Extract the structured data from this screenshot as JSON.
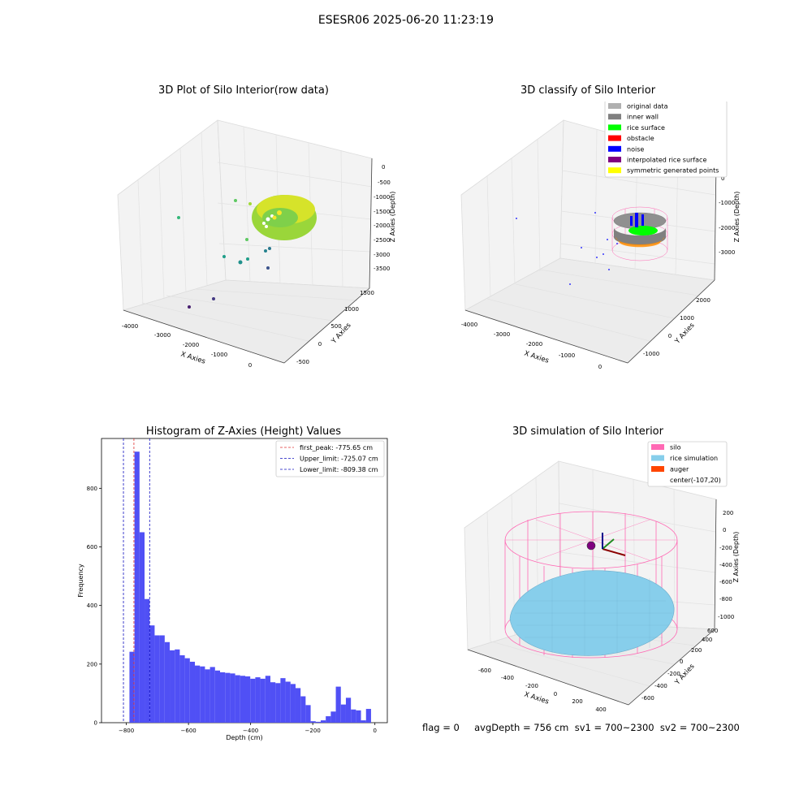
{
  "suptitle": "ESESR06 2025-06-20 11:23:19",
  "footer": "flag = 0     avgDepth = 756 cm  sv1 = 700~2300  sv2 = 700~2300",
  "colors": {
    "histogram": "#5050f5",
    "first_peak_line": "#e03030",
    "limit_lines": "#1010c0"
  },
  "chart_data": [
    {
      "type": "scatter",
      "title": "3D Plot of Silo Interior(row data)",
      "xlabel": "X Axies",
      "ylabel": "Y Axies",
      "zlabel": "Z Axies (Depth)",
      "x_ticks": [
        "-4000",
        "-3000",
        "-2000",
        "-1000",
        "0"
      ],
      "y_ticks": [
        "-500",
        "0",
        "500",
        "1000",
        "1500"
      ],
      "z_ticks": [
        "0",
        "-500",
        "-1000",
        "-1500",
        "-2000",
        "-2500",
        "-3000",
        "-3500"
      ],
      "colormap": "viridis"
    },
    {
      "type": "scatter",
      "title": "3D classify of Silo Interior",
      "xlabel": "X Axies",
      "ylabel": "Y Axies",
      "zlabel": "Z Axies (Depth)",
      "x_ticks": [
        "-4000",
        "-3000",
        "-2000",
        "-1000",
        "0"
      ],
      "y_ticks": [
        "-1000",
        "0",
        "1000",
        "2000"
      ],
      "z_ticks": [
        "0",
        "-1000",
        "-2000",
        "-3000"
      ],
      "legend_position": "top-right",
      "legend": [
        {
          "label": "original data",
          "color": "#b0b0b0"
        },
        {
          "label": "inner wall",
          "color": "#808080"
        },
        {
          "label": "rice surface",
          "color": "#00ff00"
        },
        {
          "label": "obstacle",
          "color": "#ff0000"
        },
        {
          "label": "noise",
          "color": "#0000ff"
        },
        {
          "label": "interpolated rice surface",
          "color": "#800080"
        },
        {
          "label": "symmetric generated points",
          "color": "#ffff00"
        }
      ]
    },
    {
      "type": "bar",
      "title": "Histogram of Z-Axies (Height) Values",
      "xlabel": "Depth (cm)",
      "ylabel": "Frequency",
      "xlim": [
        -880,
        40
      ],
      "ylim": [
        0,
        970
      ],
      "x_ticks": [
        -800,
        -600,
        -400,
        -200,
        0
      ],
      "x_tick_labels": [
        "−800",
        "−600",
        "−400",
        "−200",
        "0"
      ],
      "y_ticks": [
        0,
        200,
        400,
        600,
        800
      ],
      "bin_width": 16.2,
      "bin_start": -790,
      "values": [
        242,
        925,
        650,
        422,
        332,
        298,
        298,
        275,
        247,
        250,
        230,
        220,
        208,
        195,
        192,
        182,
        190,
        178,
        172,
        170,
        168,
        162,
        160,
        158,
        150,
        155,
        150,
        160,
        138,
        135,
        152,
        140,
        132,
        118,
        90,
        60,
        5,
        3,
        8,
        22,
        38,
        123,
        62,
        85,
        45,
        42,
        8,
        47
      ],
      "lines": [
        {
          "label": "first_peak: -775.65 cm",
          "x": -775.65,
          "color": "#e03030"
        },
        {
          "label": "Upper_limit: -725.07 cm",
          "x": -725.07,
          "color": "#1010c0"
        },
        {
          "label": "Lower_limit: -809.38 cm",
          "x": -809.38,
          "color": "#1010c0"
        }
      ],
      "legend_position": "top-right"
    },
    {
      "type": "scatter",
      "title": "3D simulation of Silo Interior",
      "xlabel": "X Axies",
      "ylabel": "Y Axies",
      "zlabel": "Z Axies (Depth)",
      "x_ticks": [
        "-600",
        "-400",
        "-200",
        "0",
        "200",
        "400"
      ],
      "y_ticks": [
        "-600",
        "-400",
        "-200",
        "0",
        "200",
        "400",
        "600"
      ],
      "z_ticks": [
        "200",
        "0",
        "-200",
        "-400",
        "-600",
        "-800",
        "-1000"
      ],
      "legend_position": "top-right",
      "legend": [
        {
          "label": "silo",
          "color": "#ff69b4"
        },
        {
          "label": "rice simulation",
          "color": "#87ceeb"
        },
        {
          "label": "auger",
          "color": "#ff4500"
        },
        {
          "label": "center(-107,20)",
          "color": "none"
        }
      ]
    }
  ]
}
